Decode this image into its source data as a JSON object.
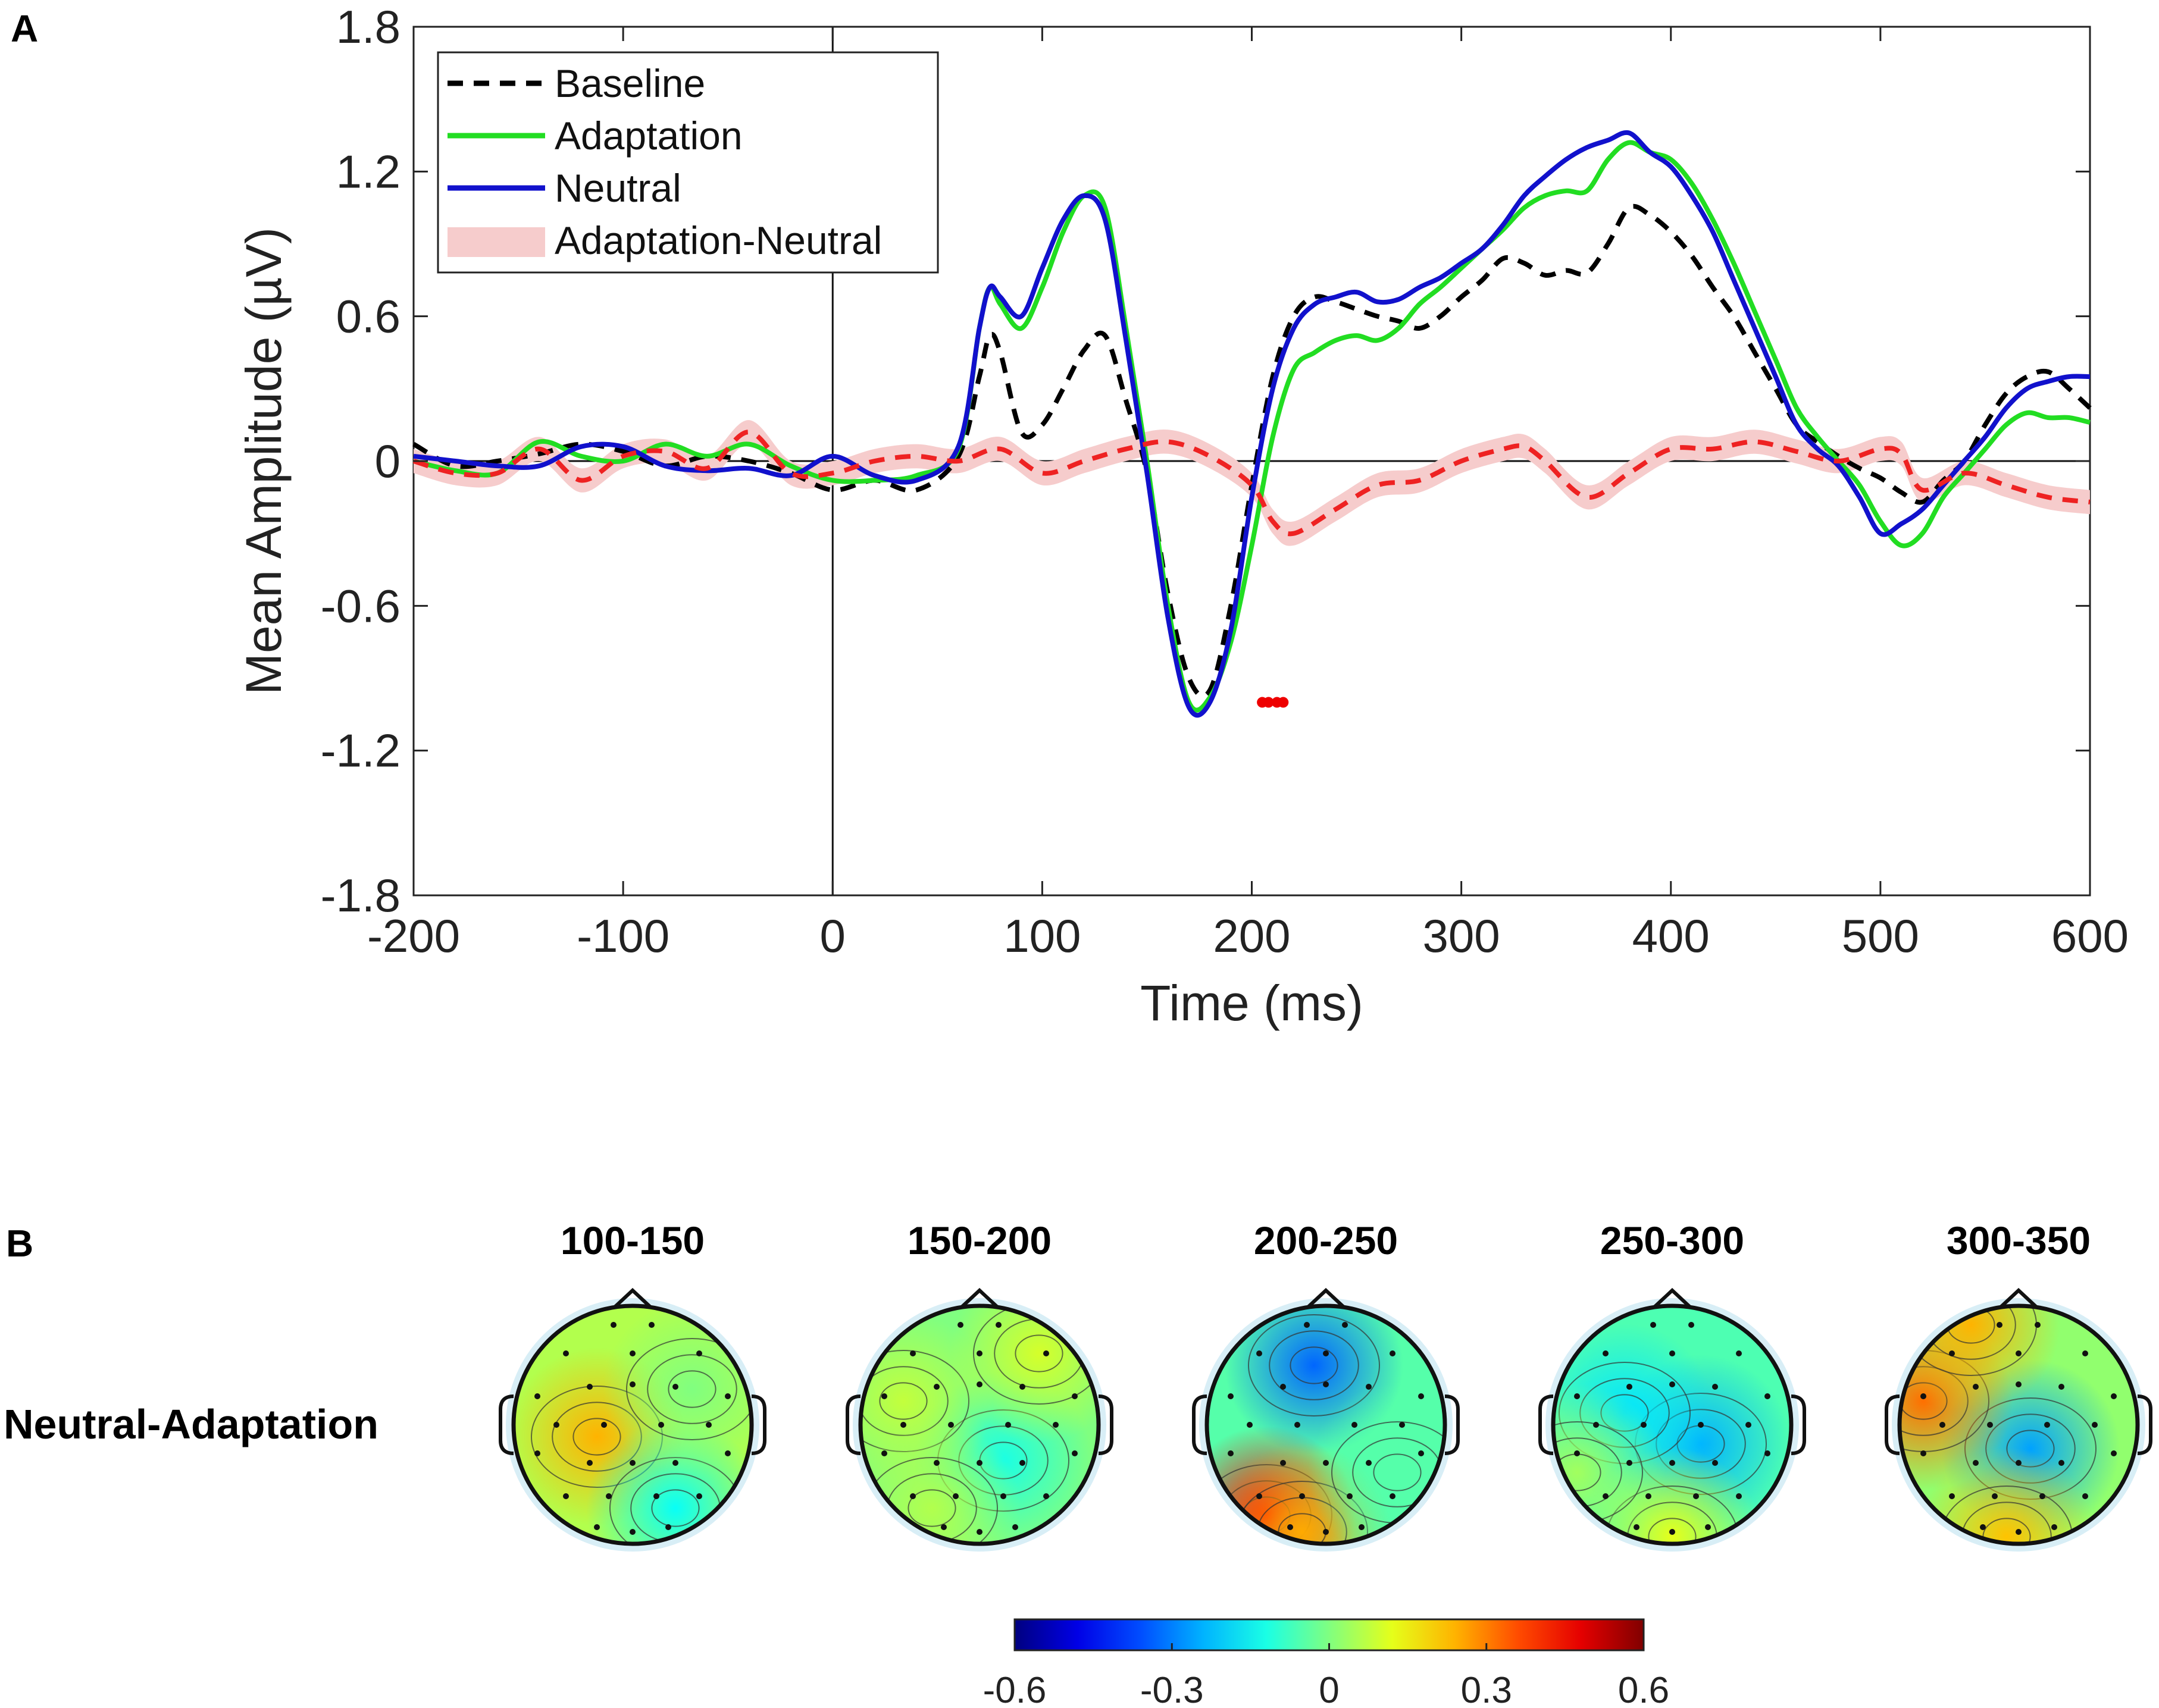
{
  "panel_a_label": "A",
  "panel_b_label": "B",
  "chart_data": [
    {
      "type": "line",
      "panel": "A",
      "title": "",
      "xlabel": "Time (ms)",
      "ylabel": "Mean Amplitude (µV)",
      "xlim": [
        -200,
        600
      ],
      "ylim": [
        -1.8,
        1.8
      ],
      "xticks": [
        -200,
        -100,
        0,
        100,
        200,
        300,
        400,
        500,
        600
      ],
      "xtick_labels": [
        "-200",
        "-100",
        "0",
        "100",
        "200",
        "300",
        "400",
        "500",
        "600"
      ],
      "yticks": [
        -1.8,
        -1.2,
        -0.6,
        0,
        0.6,
        1.2,
        1.8
      ],
      "ytick_labels": [
        "-1.8",
        "-1.2",
        "-0.6",
        "0",
        "0.6",
        "1.2",
        "1.8"
      ],
      "legend_position": "top-left",
      "legend": [
        "Baseline",
        "Adaptation",
        "Neutral",
        "Adaptation-Neutral"
      ],
      "series": [
        {
          "name": "Baseline",
          "color": "#000000",
          "style": "dashed",
          "x": [
            -200,
            -180,
            -160,
            -140,
            -120,
            -100,
            -80,
            -60,
            -40,
            -20,
            0,
            20,
            40,
            60,
            70,
            75,
            80,
            90,
            100,
            110,
            120,
            130,
            140,
            150,
            160,
            170,
            180,
            190,
            200,
            210,
            220,
            230,
            240,
            250,
            260,
            270,
            280,
            290,
            300,
            310,
            320,
            330,
            340,
            350,
            360,
            370,
            380,
            390,
            400,
            410,
            420,
            430,
            440,
            450,
            460,
            470,
            480,
            490,
            500,
            510,
            520,
            530,
            540,
            550,
            560,
            570,
            580,
            590,
            600
          ],
          "values": [
            0.07,
            -0.02,
            0.0,
            0.03,
            0.07,
            0.04,
            -0.02,
            0.02,
            0.0,
            -0.05,
            -0.12,
            -0.08,
            -0.12,
            0.02,
            0.35,
            0.52,
            0.45,
            0.12,
            0.15,
            0.3,
            0.46,
            0.52,
            0.25,
            -0.05,
            -0.55,
            -0.9,
            -0.95,
            -0.6,
            -0.1,
            0.35,
            0.6,
            0.68,
            0.66,
            0.63,
            0.6,
            0.58,
            0.55,
            0.6,
            0.68,
            0.75,
            0.84,
            0.82,
            0.77,
            0.79,
            0.78,
            0.9,
            1.05,
            1.02,
            0.95,
            0.85,
            0.72,
            0.6,
            0.45,
            0.3,
            0.15,
            0.08,
            0.02,
            -0.03,
            -0.07,
            -0.13,
            -0.17,
            -0.08,
            0.0,
            0.15,
            0.28,
            0.35,
            0.37,
            0.3,
            0.22
          ]
        },
        {
          "name": "Adaptation",
          "color": "#22dd22",
          "style": "solid",
          "x": [
            -200,
            -180,
            -160,
            -140,
            -120,
            -100,
            -80,
            -60,
            -40,
            -20,
            0,
            20,
            40,
            60,
            70,
            75,
            80,
            90,
            100,
            110,
            120,
            130,
            140,
            150,
            160,
            170,
            180,
            190,
            200,
            210,
            220,
            230,
            240,
            250,
            260,
            270,
            280,
            290,
            300,
            310,
            320,
            330,
            340,
            350,
            360,
            370,
            380,
            390,
            400,
            410,
            420,
            430,
            440,
            450,
            460,
            470,
            480,
            490,
            500,
            510,
            520,
            530,
            540,
            550,
            560,
            570,
            580,
            590,
            600
          ],
          "values": [
            0.0,
            -0.04,
            -0.05,
            0.08,
            0.02,
            0.0,
            0.07,
            0.02,
            0.07,
            -0.02,
            -0.08,
            -0.08,
            -0.06,
            0.05,
            0.55,
            0.72,
            0.65,
            0.55,
            0.72,
            0.95,
            1.1,
            1.05,
            0.55,
            0.0,
            -0.6,
            -1.0,
            -0.98,
            -0.75,
            -0.35,
            0.1,
            0.38,
            0.45,
            0.5,
            0.52,
            0.5,
            0.55,
            0.65,
            0.72,
            0.8,
            0.88,
            0.96,
            1.05,
            1.1,
            1.12,
            1.12,
            1.25,
            1.32,
            1.28,
            1.25,
            1.15,
            1.0,
            0.82,
            0.62,
            0.42,
            0.22,
            0.1,
            0.0,
            -0.1,
            -0.25,
            -0.35,
            -0.3,
            -0.15,
            -0.05,
            0.05,
            0.15,
            0.2,
            0.18,
            0.18,
            0.16
          ]
        },
        {
          "name": "Neutral",
          "color": "#1111cc",
          "style": "solid",
          "x": [
            -200,
            -180,
            -160,
            -140,
            -120,
            -100,
            -80,
            -60,
            -40,
            -20,
            0,
            20,
            40,
            60,
            70,
            75,
            80,
            90,
            100,
            110,
            120,
            130,
            140,
            150,
            160,
            170,
            180,
            190,
            200,
            210,
            220,
            230,
            240,
            250,
            260,
            270,
            280,
            290,
            300,
            310,
            320,
            330,
            340,
            350,
            360,
            370,
            380,
            390,
            400,
            410,
            420,
            430,
            440,
            450,
            460,
            470,
            480,
            490,
            500,
            510,
            520,
            530,
            540,
            550,
            560,
            570,
            580,
            590,
            600
          ],
          "values": [
            0.02,
            0.0,
            -0.02,
            -0.02,
            0.06,
            0.06,
            -0.02,
            -0.04,
            -0.03,
            -0.06,
            0.02,
            -0.06,
            -0.08,
            0.06,
            0.55,
            0.72,
            0.68,
            0.6,
            0.8,
            1.0,
            1.1,
            1.0,
            0.5,
            -0.05,
            -0.65,
            -1.02,
            -1.0,
            -0.7,
            -0.15,
            0.3,
            0.55,
            0.65,
            0.68,
            0.7,
            0.66,
            0.67,
            0.72,
            0.76,
            0.82,
            0.88,
            0.98,
            1.1,
            1.18,
            1.25,
            1.3,
            1.33,
            1.36,
            1.28,
            1.22,
            1.1,
            0.95,
            0.75,
            0.55,
            0.35,
            0.15,
            0.05,
            -0.02,
            -0.15,
            -0.3,
            -0.26,
            -0.2,
            -0.1,
            0.0,
            0.1,
            0.22,
            0.3,
            0.33,
            0.35,
            0.35
          ]
        },
        {
          "name": "Adaptation-Neutral",
          "color": "#ee2222",
          "style": "dashed",
          "band_color": "#f6cccc",
          "band_halfwidth": 0.05,
          "x": [
            -200,
            -180,
            -160,
            -140,
            -120,
            -100,
            -80,
            -60,
            -40,
            -20,
            0,
            20,
            40,
            60,
            80,
            100,
            120,
            140,
            160,
            180,
            200,
            210,
            220,
            240,
            260,
            280,
            300,
            320,
            330,
            340,
            360,
            380,
            400,
            420,
            440,
            460,
            480,
            500,
            510,
            520,
            540,
            560,
            580,
            600
          ],
          "values": [
            0.0,
            -0.05,
            -0.05,
            0.05,
            -0.08,
            0.02,
            0.04,
            -0.03,
            0.12,
            -0.05,
            -0.05,
            0.0,
            0.02,
            0.0,
            0.05,
            -0.05,
            0.0,
            0.05,
            0.08,
            0.02,
            -0.1,
            -0.25,
            -0.3,
            -0.2,
            -0.1,
            -0.08,
            0.0,
            0.05,
            0.06,
            0.0,
            -0.15,
            -0.05,
            0.05,
            0.05,
            0.08,
            0.04,
            0.0,
            0.05,
            0.03,
            -0.12,
            -0.05,
            -0.1,
            -0.15,
            -0.17
          ]
        }
      ],
      "significance_points": {
        "color": "#ee0000",
        "x": [
          205,
          208,
          212,
          215
        ],
        "y": -1.0
      }
    },
    {
      "type": "heatmap",
      "panel": "B",
      "row_label": "Neutral-Adaptation",
      "colormap": "jet",
      "colorbar": {
        "min": -0.6,
        "max": 0.6,
        "ticks": [
          "-0.6",
          "-0.3",
          "0",
          "0.3",
          "0.6"
        ]
      },
      "maps": [
        {
          "title": "100-150",
          "base": 0.06,
          "blobs": [
            {
              "u": 0.35,
              "v": 0.55,
              "val": 0.18
            },
            {
              "u": 0.68,
              "v": 0.85,
              "val": -0.2
            },
            {
              "u": 0.75,
              "v": 0.35,
              "val": -0.06
            }
          ]
        },
        {
          "title": "150-200",
          "base": 0.0,
          "blobs": [
            {
              "u": 0.6,
              "v": 0.65,
              "val": -0.12
            },
            {
              "u": 0.18,
              "v": 0.4,
              "val": 0.08
            },
            {
              "u": 0.75,
              "v": 0.2,
              "val": 0.1
            },
            {
              "u": 0.3,
              "v": 0.85,
              "val": 0.06
            }
          ]
        },
        {
          "title": "200-250",
          "base": -0.05,
          "blobs": [
            {
              "u": 0.45,
              "v": 0.25,
              "val": -0.28
            },
            {
              "u": 0.25,
              "v": 0.88,
              "val": 0.5
            },
            {
              "u": 0.4,
              "v": 0.95,
              "val": 0.3
            },
            {
              "u": 0.8,
              "v": 0.7,
              "val": 0.0
            }
          ]
        },
        {
          "title": "250-300",
          "base": -0.06,
          "blobs": [
            {
              "u": 0.62,
              "v": 0.58,
              "val": -0.18
            },
            {
              "u": 0.3,
              "v": 0.45,
              "val": -0.12
            },
            {
              "u": 0.5,
              "v": 0.97,
              "val": 0.18
            },
            {
              "u": 0.1,
              "v": 0.7,
              "val": 0.1
            }
          ]
        },
        {
          "title": "300-350",
          "base": 0.02,
          "blobs": [
            {
              "u": 0.55,
              "v": 0.6,
              "val": -0.28
            },
            {
              "u": 0.1,
              "v": 0.4,
              "val": 0.3
            },
            {
              "u": 0.3,
              "v": 0.08,
              "val": 0.22
            },
            {
              "u": 0.45,
              "v": 0.97,
              "val": 0.2
            }
          ]
        }
      ]
    }
  ]
}
